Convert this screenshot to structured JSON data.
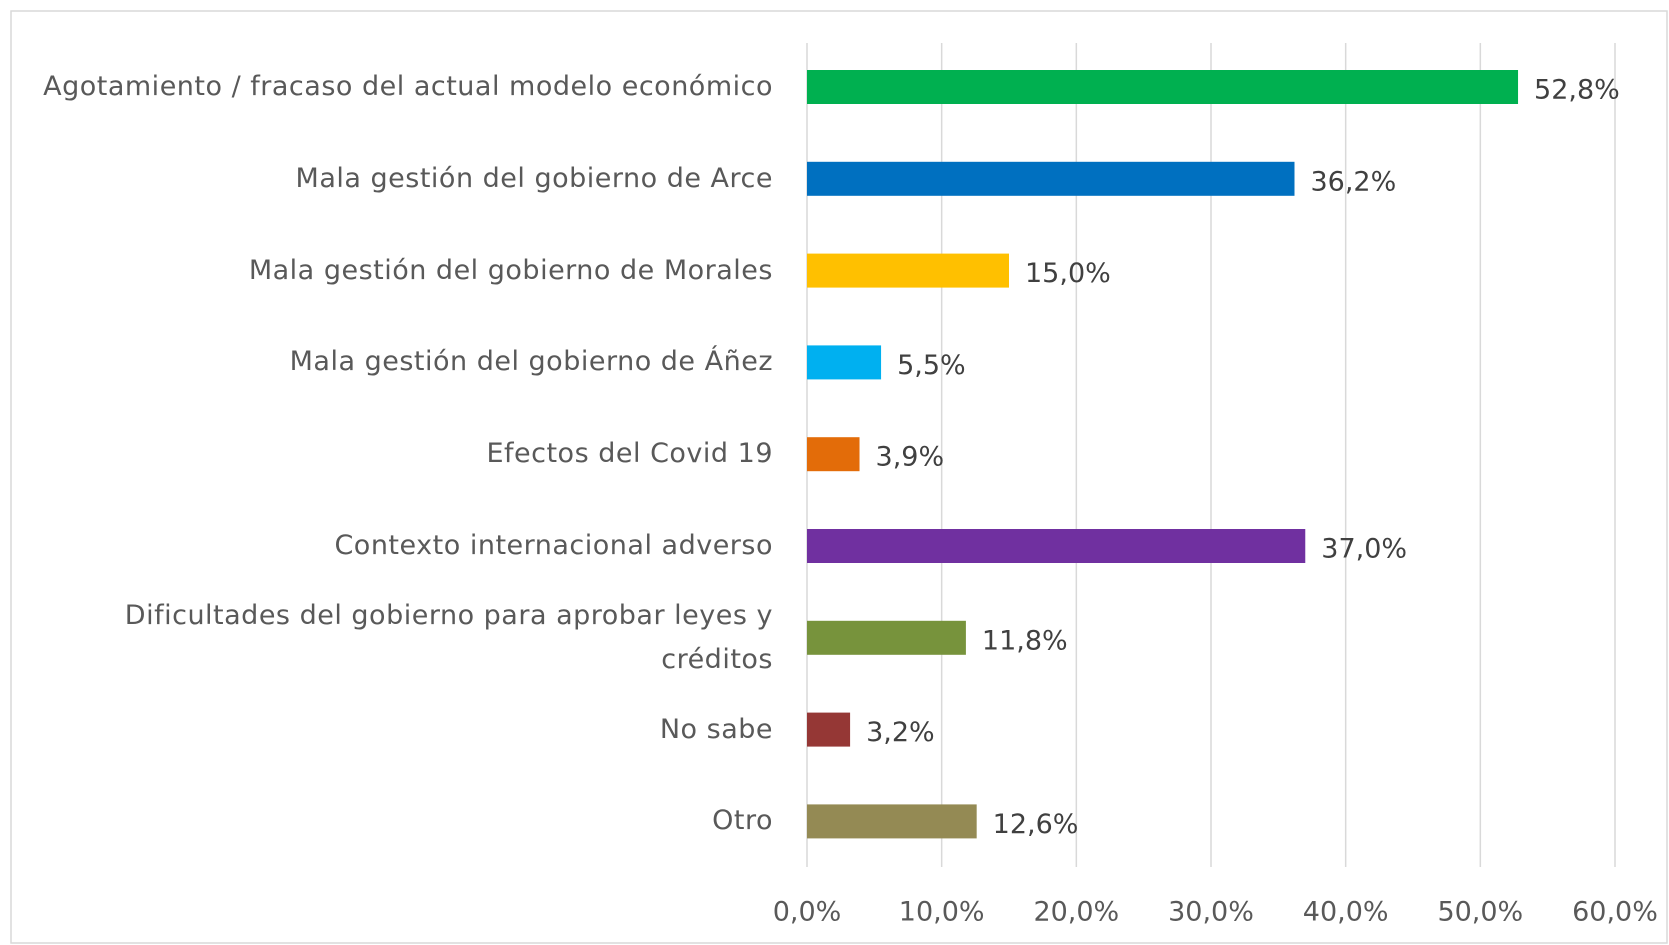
{
  "chart_data": {
    "type": "barh",
    "categories": [
      "Agotamiento / fracaso del actual modelo económico",
      "Mala gestión del gobierno de Arce",
      "Mala gestión del gobierno de Morales",
      "Mala gestión del gobierno de Áñez",
      "Efectos del Covid 19",
      "Contexto internacional adverso",
      "Dificultades del gobierno para aprobar leyes y créditos",
      "No sabe",
      "Otro"
    ],
    "values": [
      52.8,
      36.2,
      15.0,
      5.5,
      3.9,
      37.0,
      11.8,
      3.2,
      12.6
    ],
    "value_labels": [
      "52,8%",
      "36,2%",
      "15,0%",
      "5,5%",
      "3,9%",
      "37,0%",
      "11,8%",
      "3,2%",
      "12,6%"
    ],
    "colors": [
      "#00b050",
      "#0070c0",
      "#ffc000",
      "#00b0f0",
      "#e36c09",
      "#7030a0",
      "#77933c",
      "#953735",
      "#948a54"
    ],
    "xlim": [
      0,
      60
    ],
    "xticks": [
      {
        "value": 0,
        "label": "0,0%"
      },
      {
        "value": 10,
        "label": "10,0%"
      },
      {
        "value": 20,
        "label": "20,0%"
      },
      {
        "value": 30,
        "label": "30,0%"
      },
      {
        "value": 40,
        "label": "40,0%"
      },
      {
        "value": 50,
        "label": "50,0%"
      },
      {
        "value": 60,
        "label": "60,0%"
      }
    ],
    "grid": true
  }
}
